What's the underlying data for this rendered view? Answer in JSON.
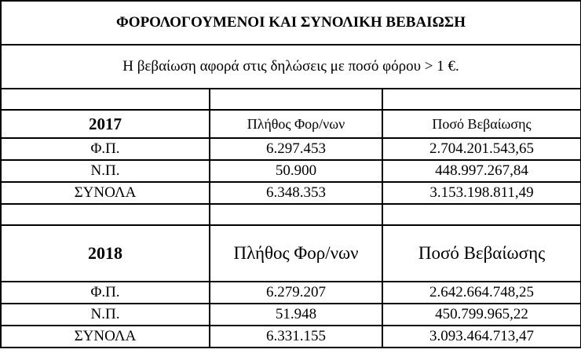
{
  "title": "ΦΟΡΟΛΟΓΟΥΜΕΝΟΙ ΚΑΙ ΣΥΝΟΛΙΚΗ ΒΕΒΑΙΩΣΗ",
  "subtitle": "Η βεβαίωση αφορά στις δηλώσεις με ποσό φόρου > 1 €.",
  "sections": [
    {
      "year": "2017",
      "col_count": "Πλήθος Φορ/νων",
      "col_amount": "Ποσό Βεβαίωσης",
      "rows": [
        {
          "label": "Φ.Π.",
          "count": "6.297.453",
          "amount": "2.704.201.543,65"
        },
        {
          "label": "Ν.Π.",
          "count": "50.900",
          "amount": "448.997.267,84"
        },
        {
          "label": "ΣΥΝΟΛΑ",
          "count": "6.348.353",
          "amount": "3.153.198.811,49"
        }
      ]
    },
    {
      "year": "2018",
      "col_count": "Πλήθος Φορ/νων",
      "col_amount": "Ποσό Βεβαίωσης",
      "rows": [
        {
          "label": "Φ.Π.",
          "count": "6.279.207",
          "amount": "2.642.664.748,25"
        },
        {
          "label": "Ν.Π.",
          "count": "51.948",
          "amount": "450.799.965,22"
        },
        {
          "label": "ΣΥΝΟΛΑ",
          "count": "6.331.155",
          "amount": "3.093.464.713,47"
        }
      ]
    }
  ]
}
